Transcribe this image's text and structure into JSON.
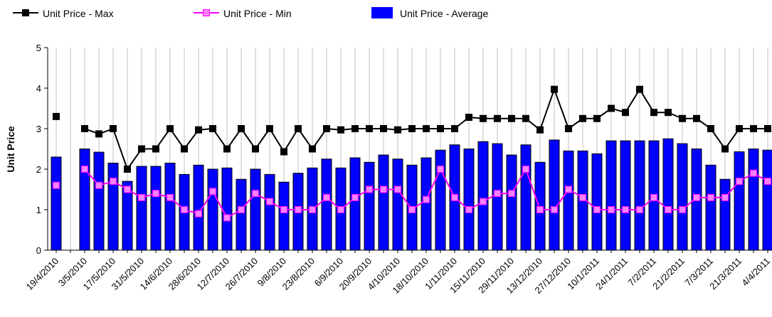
{
  "chart_data": {
    "type": "combo",
    "y_label": "Unit Price",
    "categories": [
      "19/4/2010",
      null,
      "3/5/2010",
      null,
      "17/5/2010",
      null,
      "31/5/2010",
      null,
      "14/6/2010",
      null,
      "28/6/2010",
      null,
      "12/7/2010",
      null,
      "26/7/2010",
      null,
      "9/8/2010",
      null,
      "23/8/2010",
      null,
      "6/9/2010",
      null,
      "20/9/2010",
      null,
      "4/10/2010",
      null,
      "18/10/2010",
      null,
      "1/11/2010",
      null,
      "15/11/2010",
      null,
      "29/11/2010",
      null,
      "13/12/2010",
      null,
      "27/12/2010",
      null,
      "10/1/2011",
      null,
      "24/1/2011",
      null,
      "7/2/2011",
      null,
      "21/2/2011",
      null,
      "7/3/2011",
      null,
      "21/3/2011",
      null,
      "4/4/2011"
    ],
    "series": [
      {
        "name": "Unit Price - Max",
        "type": "line",
        "color": "#000000",
        "values": [
          3.3,
          null,
          3.0,
          2.87,
          3.0,
          2.0,
          2.5,
          2.5,
          3.0,
          2.5,
          2.97,
          3.0,
          2.5,
          3.0,
          2.5,
          3.0,
          2.43,
          3.0,
          2.5,
          3.0,
          2.97,
          3.0,
          3.0,
          3.0,
          2.97,
          3.0,
          3.0,
          3.0,
          3.0,
          3.28,
          3.25,
          3.25,
          3.25,
          3.25,
          2.97,
          3.97,
          3.0,
          3.25,
          3.25,
          3.5,
          3.4,
          3.97,
          3.4,
          3.4,
          3.25,
          3.25,
          3.0,
          2.5,
          3.0,
          3.0,
          3.0
        ]
      },
      {
        "name": "Unit Price - Min",
        "type": "line",
        "color": "#ff00ff",
        "values": [
          1.6,
          null,
          2.0,
          1.6,
          1.7,
          1.5,
          1.3,
          1.4,
          1.3,
          1.0,
          0.9,
          1.45,
          0.8,
          1.0,
          1.4,
          1.2,
          1.0,
          1.0,
          1.0,
          1.3,
          1.0,
          1.3,
          1.5,
          1.5,
          1.5,
          1.0,
          1.25,
          2.0,
          1.3,
          1.0,
          1.2,
          1.4,
          1.4,
          2.0,
          1.0,
          1.0,
          1.5,
          1.3,
          1.0,
          1.0,
          1.0,
          1.0,
          1.3,
          1.0,
          1.0,
          1.3,
          1.3,
          1.3,
          1.7,
          1.9,
          1.7
        ]
      },
      {
        "name": "Unit Price - Average",
        "type": "bar",
        "color": "#0000ff",
        "values": [
          2.3,
          null,
          2.5,
          2.42,
          2.15,
          1.7,
          2.07,
          2.07,
          2.15,
          1.87,
          2.1,
          2.0,
          2.03,
          1.75,
          2.0,
          1.87,
          1.68,
          1.9,
          2.03,
          2.25,
          2.03,
          2.28,
          2.17,
          2.35,
          2.25,
          2.1,
          2.28,
          2.47,
          2.6,
          2.5,
          2.68,
          2.63,
          2.35,
          2.6,
          2.17,
          2.72,
          2.45,
          2.45,
          2.38,
          2.7,
          2.7,
          2.7,
          2.7,
          2.75,
          2.63,
          2.5,
          2.1,
          1.75,
          2.43,
          2.5,
          2.47
        ]
      }
    ],
    "ylim": [
      0,
      5
    ],
    "yticks": [
      0,
      1,
      2,
      3,
      4,
      5
    ],
    "grid": "x"
  }
}
